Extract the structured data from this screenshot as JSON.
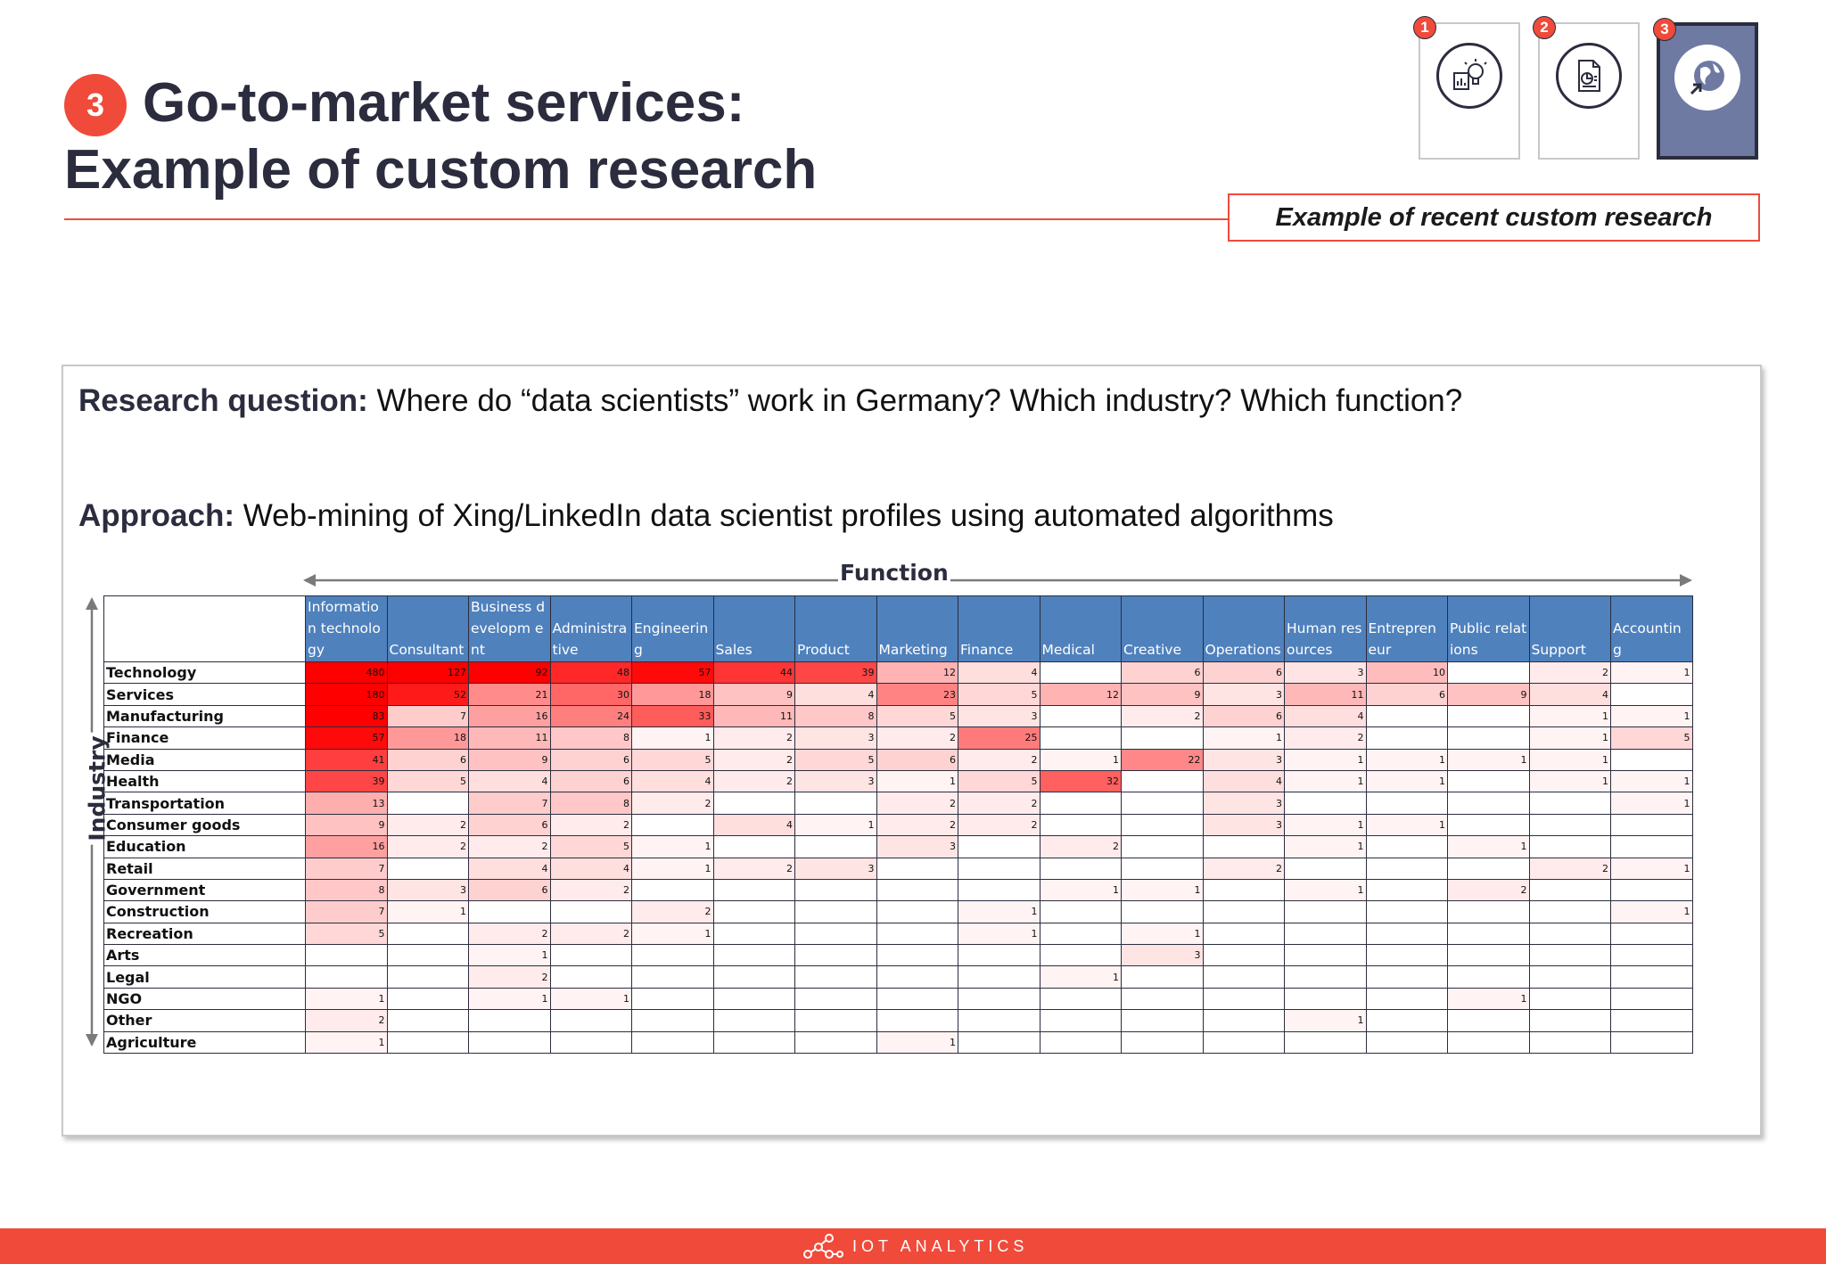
{
  "header": {
    "step_number": "3",
    "title_line1": "Go-to-market services:",
    "title_line2": "Example of custom research",
    "callout": "Example of recent custom research"
  },
  "step_nav": [
    {
      "number": "1",
      "icon": "lightbulb-chart-icon",
      "active": false
    },
    {
      "number": "2",
      "icon": "report-document-icon",
      "active": false
    },
    {
      "number": "3",
      "icon": "globe-arrow-icon",
      "active": true
    }
  ],
  "research": {
    "question_label": "Research question:",
    "question_text": " Where do “data scientists” work in Germany? Which industry? Which function?",
    "approach_label": "Approach:",
    "approach_text": " Web-mining of Xing/LinkedIn data scientist profiles using automated algorithms"
  },
  "chart_data": {
    "type": "heatmap",
    "x_axis_label": "Function",
    "y_axis_label": "Industry",
    "columns": [
      "Informatio n technology",
      "Consultant",
      "Business developm ent",
      "Administra tive",
      "Engineerin g",
      "Sales",
      "Product",
      "Marketing",
      "Finance",
      "Medical",
      "Creative",
      "Operations",
      "Human resources",
      "Entrepren eur",
      "Public relations",
      "Support",
      "Accountin g"
    ],
    "rows": [
      {
        "label": "Technology",
        "values": [
          480,
          127,
          92,
          48,
          57,
          44,
          39,
          12,
          4,
          null,
          6,
          6,
          3,
          10,
          null,
          2,
          1
        ]
      },
      {
        "label": "Services",
        "values": [
          180,
          52,
          21,
          30,
          18,
          9,
          4,
          23,
          5,
          12,
          9,
          3,
          11,
          6,
          9,
          4,
          null
        ]
      },
      {
        "label": "Manufacturing",
        "values": [
          83,
          7,
          16,
          24,
          33,
          11,
          8,
          5,
          3,
          null,
          2,
          6,
          4,
          null,
          null,
          1,
          1
        ]
      },
      {
        "label": "Finance",
        "values": [
          57,
          18,
          11,
          8,
          1,
          2,
          3,
          2,
          25,
          null,
          null,
          1,
          2,
          null,
          null,
          1,
          5
        ]
      },
      {
        "label": "Media",
        "values": [
          41,
          6,
          9,
          6,
          5,
          2,
          5,
          6,
          2,
          1,
          22,
          3,
          1,
          1,
          1,
          1,
          null
        ]
      },
      {
        "label": "Health",
        "values": [
          39,
          5,
          4,
          6,
          4,
          2,
          3,
          1,
          5,
          32,
          null,
          4,
          1,
          1,
          null,
          1,
          1
        ]
      },
      {
        "label": "Transportation",
        "values": [
          13,
          null,
          7,
          8,
          2,
          null,
          null,
          2,
          2,
          null,
          null,
          3,
          null,
          null,
          null,
          null,
          1
        ]
      },
      {
        "label": "Consumer goods",
        "values": [
          9,
          2,
          6,
          2,
          null,
          4,
          1,
          2,
          2,
          null,
          null,
          3,
          1,
          1,
          null,
          null,
          null
        ]
      },
      {
        "label": "Education",
        "values": [
          16,
          2,
          2,
          5,
          1,
          null,
          null,
          3,
          null,
          2,
          null,
          null,
          1,
          null,
          1,
          null,
          null
        ]
      },
      {
        "label": "Retail",
        "values": [
          7,
          null,
          4,
          4,
          1,
          2,
          3,
          null,
          null,
          null,
          null,
          2,
          null,
          null,
          null,
          2,
          1
        ]
      },
      {
        "label": "Government",
        "values": [
          8,
          3,
          6,
          2,
          null,
          null,
          null,
          null,
          null,
          1,
          1,
          null,
          1,
          null,
          2,
          null,
          null
        ]
      },
      {
        "label": "Construction",
        "values": [
          7,
          1,
          null,
          null,
          2,
          null,
          null,
          null,
          1,
          null,
          null,
          null,
          null,
          null,
          null,
          null,
          1
        ]
      },
      {
        "label": "Recreation",
        "values": [
          5,
          null,
          2,
          2,
          1,
          null,
          null,
          null,
          1,
          null,
          1,
          null,
          null,
          null,
          null,
          null,
          null
        ]
      },
      {
        "label": "Arts",
        "values": [
          null,
          null,
          1,
          null,
          null,
          null,
          null,
          null,
          null,
          null,
          3,
          null,
          null,
          null,
          null,
          null,
          null
        ]
      },
      {
        "label": "Legal",
        "values": [
          null,
          null,
          2,
          null,
          null,
          null,
          null,
          null,
          null,
          1,
          null,
          null,
          null,
          null,
          null,
          null,
          null
        ]
      },
      {
        "label": "NGO",
        "values": [
          1,
          null,
          1,
          1,
          null,
          null,
          null,
          null,
          null,
          null,
          null,
          null,
          null,
          null,
          1,
          null,
          null
        ]
      },
      {
        "label": "Other",
        "values": [
          2,
          null,
          null,
          null,
          null,
          null,
          null,
          null,
          null,
          null,
          null,
          null,
          1,
          null,
          null,
          null,
          null
        ]
      },
      {
        "label": "Agriculture",
        "values": [
          1,
          null,
          null,
          null,
          null,
          null,
          null,
          1,
          null,
          null,
          null,
          null,
          null,
          null,
          null,
          null,
          null
        ]
      }
    ],
    "color_scale": {
      "low": "#ffffff",
      "high": "#ff0000"
    },
    "header_color": "#4f81bd"
  },
  "footer": {
    "brand": "IOT ANALYTICS"
  },
  "colors": {
    "accent": "#f04a3a",
    "navy": "#2b2d3e"
  }
}
